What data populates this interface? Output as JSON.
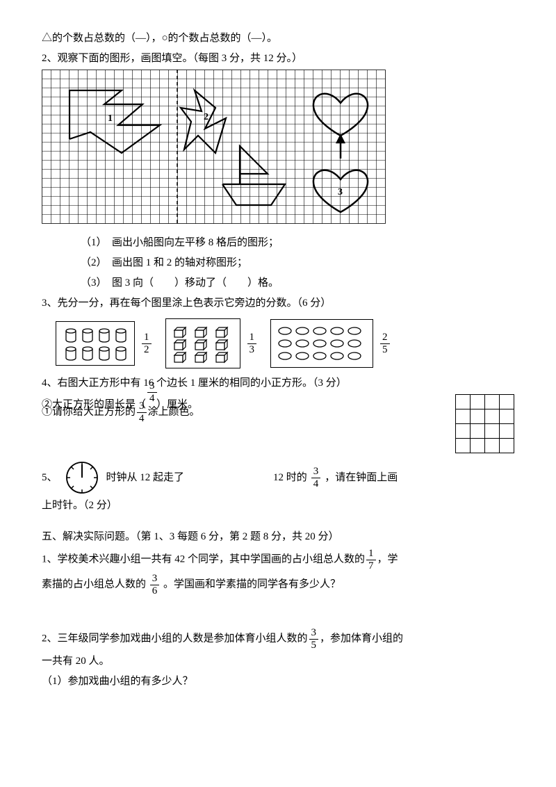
{
  "q1": {
    "text": "△的个数占总数的（—），○的个数占总数的（—）。"
  },
  "q2": {
    "header": "2、观察下面的图形，画图填空。（每图 3 分，共 12 分。）",
    "grid": {
      "cols": 38,
      "rows": 17,
      "cell": 13,
      "stroke": "#000000",
      "bg": "#ffffff"
    },
    "labels": {
      "l1": "1",
      "l2": "2",
      "l3": "3"
    },
    "sub1": "（1）　画出小船图向左平移 8 格后的图形；",
    "sub2": "（2）　画出图 1 和 2 的轴对称图形；",
    "sub3": "（3）　图 3 向（　　）移动了（　　）格。"
  },
  "q3": {
    "header": "3、先分一分，再在每个图里涂上色表示它旁边的分数。（6 分）",
    "fracs": [
      {
        "n": "1",
        "d": "2"
      },
      {
        "n": "1",
        "d": "3"
      },
      {
        "n": "2",
        "d": "5"
      }
    ]
  },
  "q4": {
    "header": "4、右图大正方形中有 16 个边长 1 厘米的相同的小正方形。（3 分）",
    "line1a": "②大正方形的周长是（　）厘米。",
    "line1b_pre": "①请你给大正方形的",
    "line1b_frac": {
      "n": "3",
      "d": "4"
    },
    "line1b_post": "涂上颜色。"
  },
  "q5": {
    "label": "5、",
    "t1": "时钟从 12 起走了",
    "t2": "12 时的",
    "frac": {
      "n": "3",
      "d": "4"
    },
    "t3": "，请在钟面上画",
    "t4": "上时针。（2 分）"
  },
  "sec5": {
    "header": "五、解决实际问题。（第 1、3 每题 6 分，第 2 题 8 分，共 20 分）",
    "p1a": "1、学校美术兴趣小组一共有 42 个同学，其中学国画的占小组总人数的",
    "p1f1": {
      "n": "1",
      "d": "7"
    },
    "p1b": "，学",
    "p1c": "素描的占小组总人数的 ",
    "p1f2": {
      "n": "3",
      "d": "6"
    },
    "p1d": " 。学国画和学素描的同学各有多少人？",
    "p2a": "2、三年级同学参加戏曲小组的人数是参加体育小组人数的",
    "p2f": {
      "n": "3",
      "d": "5"
    },
    "p2b": "，参加体育小组的",
    "p2c": "一共有 20 人。",
    "p2d": "（1）参加戏曲小组的有多少人？"
  }
}
